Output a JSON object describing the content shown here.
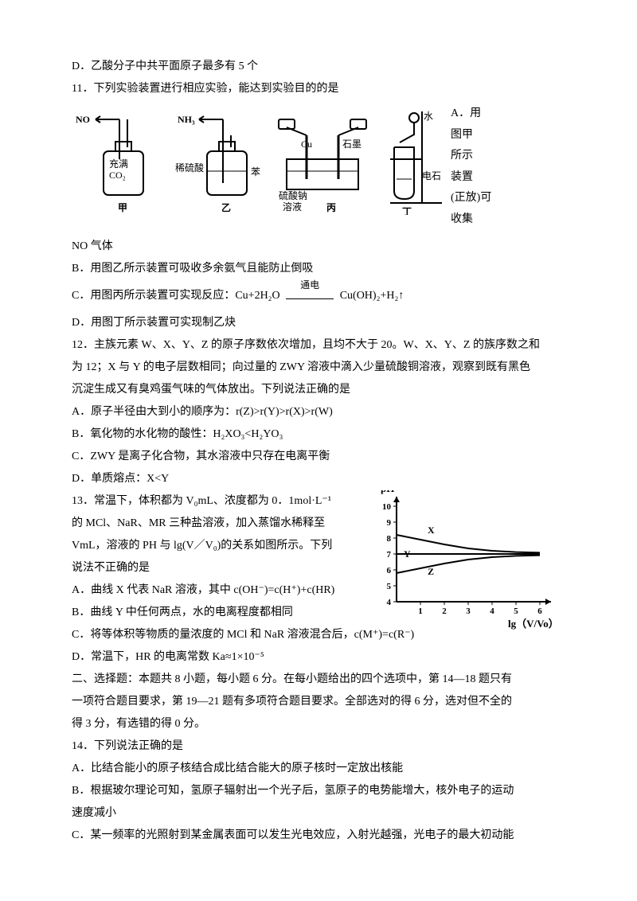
{
  "q10_d": "D．乙酸分子中共平面原子最多有 5 个",
  "q11_stem": "11．下列实验装置进行相应实验，能达到实验目的的是",
  "q11_side": [
    "A．用",
    "图甲",
    "所示",
    "装置",
    "(正放)可",
    "收集"
  ],
  "q11_post": "NO 气体",
  "q11_b": "B．用图乙所示装置可吸收多余氨气且能防止倒吸",
  "q11_c_pre": "C．用图丙所示装置可实现反应：Cu+2H₂O",
  "q11_c_label": "通电",
  "q11_c_post": " Cu(OH)₂+H₂↑",
  "q11_d": "D．用图丁所示装置可实现制乙炔",
  "q12_l1": "12．主族元素 W、X、Y、Z 的原子序数依次增加，且均不大于 20。W、X、Y、Z 的族序数之和",
  "q12_l2": "为 12；X 与 Y 的电子层数相同；向过量的 ZWY 溶液中滴入少量硫酸铜溶液，观察到既有黑色",
  "q12_l3": "沉淀生成又有臭鸡蛋气味的气体放出。下列说法正确的是",
  "q12_a": "A．原子半径由大到小的顺序为：r(Z)>r(Y)>r(X)>r(W)",
  "q12_b": "B．氧化物的水化物的酸性：H₂XO₃<H₂YO₃",
  "q12_c": "C．ZWY 是离子化合物，其水溶液中只存在电离平衡",
  "q12_d": "D．单质熔点：X<Y",
  "q13_l1": "13．常温下，体积都为 V₀mL、浓度都为 0．1mol·L⁻¹",
  "q13_l2": "的 MCl、NaR、MR 三种盐溶液，加入蒸馏水稀释至",
  "q13_l3": "VmL，溶液的 PH 与 lg(V／V₀)的关系如图所示。下列",
  "q13_l4": "说法不正确的是",
  "q13_a": "A．曲线 X 代表 NaR 溶液，其中 c(OH⁻)=c(H⁺)+c(HR)",
  "q13_b": "B．曲线 Y 中任何两点，水的电离程度都相同",
  "q13_c": "C．将等体积等物质的量浓度的 MCl 和 NaR 溶液混合后，c(M⁺)=c(R⁻)",
  "q13_d": "D．常温下，HR 的电离常数 Ka≈1×10⁻⁵",
  "sec2_l1": "二、选择题：本题共 8 小题，每小题 6 分。在每小题给出的四个选项中，第 14—18 题只有",
  "sec2_l2": "一项符合题目要求，第 19—21 题有多项符合题目要求。全部选对的得 6 分，选对但不全的",
  "sec2_l3": "得 3 分，有选错的得 0 分。",
  "q14_stem": "14．下列说法正确的是",
  "q14_a": "A．比结合能小的原子核结合成比结合能大的原子核时一定放出核能",
  "q14_b_l1": "B．根据玻尔理论可知，氢原子辐射出一个光子后，氢原子的电势能增大，核外电子的运动",
  "q14_b_l2": "速度减小",
  "q14_c": "C．某一频率的光照射到某金属表面可以发生光电效应，入射光越强，光电子的最大初动能",
  "apparatus": {
    "labels": {
      "no": "NO",
      "co2": "充满\nCO₂",
      "jia": "甲",
      "nh3": "NH₃",
      "dil": "稀硫酸",
      "benz": "苯",
      "yi": "乙",
      "cu": "Cu",
      "c": "石墨",
      "na2so4": "硫酸钠\n溶液",
      "bing": "丙",
      "water": "水",
      "cac2": "电石",
      "ding": "丁"
    },
    "stroke": "#000000"
  },
  "graph": {
    "xlabel": "lg（V/Vo）",
    "ylabel": "pH",
    "xticks": [
      "1",
      "2",
      "3",
      "4",
      "5",
      "6"
    ],
    "yticks": [
      "4",
      "5",
      "6",
      "7",
      "8",
      "9",
      "10"
    ],
    "curves": {
      "X": {
        "label": "X",
        "points": [
          [
            0,
            8.2
          ],
          [
            1,
            7.9
          ],
          [
            2,
            7.6
          ],
          [
            3,
            7.35
          ],
          [
            4,
            7.2
          ],
          [
            5,
            7.12
          ],
          [
            6,
            7.08
          ]
        ]
      },
      "Y": {
        "label": "Y",
        "points": [
          [
            0,
            7
          ],
          [
            6,
            7
          ]
        ]
      },
      "Z": {
        "label": "Z",
        "points": [
          [
            0,
            5.8
          ],
          [
            1,
            6.1
          ],
          [
            2,
            6.4
          ],
          [
            3,
            6.65
          ],
          [
            4,
            6.8
          ],
          [
            5,
            6.88
          ],
          [
            6,
            6.92
          ]
        ]
      }
    },
    "stroke": "#000000",
    "bg": "#ffffff"
  }
}
